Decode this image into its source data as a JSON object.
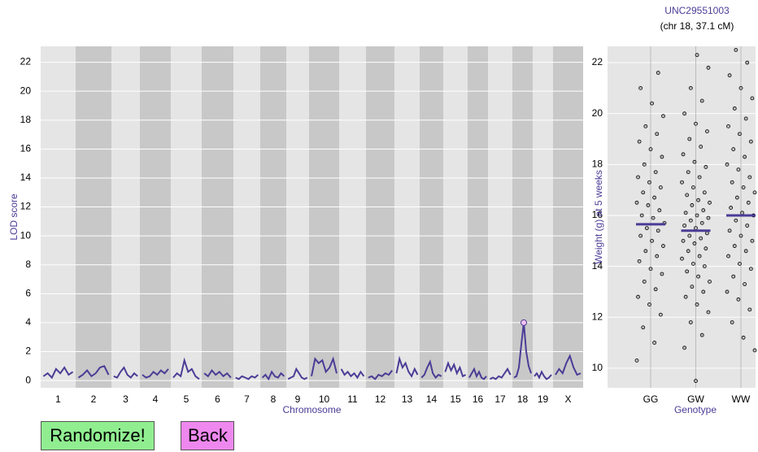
{
  "chart_data": [
    {
      "type": "genome-scan",
      "ylabel": "LOD score",
      "xlabel": "Chromosome",
      "color": "#4b3c96",
      "marker_color": "#f4c2f0",
      "marker_chromosome": "18",
      "ylim": [
        -0.5,
        23.1
      ],
      "yticks": [
        0,
        2,
        4,
        6,
        8,
        10,
        12,
        14,
        16,
        18,
        20,
        22
      ],
      "grid": true,
      "chromosomes": [
        {
          "name": "1",
          "length": 43,
          "lod": [
            0.3,
            0.5,
            0.2,
            0.8,
            0.5,
            0.9,
            0.4,
            0.6
          ]
        },
        {
          "name": "2",
          "length": 44,
          "lod": [
            0.2,
            0.4,
            0.7,
            0.3,
            0.5,
            0.9,
            1.0,
            0.4
          ]
        },
        {
          "name": "3",
          "length": 35,
          "lod": [
            0.3,
            0.2,
            0.6,
            0.9,
            0.4,
            0.2,
            0.5,
            0.3
          ]
        },
        {
          "name": "4",
          "length": 38,
          "lod": [
            0.4,
            0.2,
            0.3,
            0.6,
            0.4,
            0.7,
            0.5,
            0.8
          ]
        },
        {
          "name": "5",
          "length": 38,
          "lod": [
            0.2,
            0.5,
            0.3,
            1.4,
            0.6,
            0.8,
            0.3,
            0.1
          ]
        },
        {
          "name": "6",
          "length": 39,
          "lod": [
            0.5,
            0.3,
            0.7,
            0.4,
            0.6,
            0.3,
            0.5,
            0.2
          ]
        },
        {
          "name": "7",
          "length": 33,
          "lod": [
            0.2,
            0.1,
            0.3,
            0.2,
            0.1,
            0.3,
            0.2,
            0.4
          ]
        },
        {
          "name": "8",
          "length": 32,
          "lod": [
            0.2,
            0.4,
            0.1,
            0.6,
            0.3,
            0.2,
            0.5,
            0.3
          ]
        },
        {
          "name": "9",
          "length": 28,
          "lod": [
            0.1,
            0.2,
            0.3,
            0.8,
            0.5,
            0.2,
            0.1,
            0.2
          ]
        },
        {
          "name": "10",
          "length": 37,
          "lod": [
            0.3,
            1.5,
            1.2,
            1.4,
            0.6,
            0.9,
            1.5,
            0.5
          ]
        },
        {
          "name": "11",
          "length": 33,
          "lod": [
            0.8,
            0.4,
            0.6,
            0.3,
            0.5,
            0.2,
            0.6,
            0.3
          ]
        },
        {
          "name": "12",
          "length": 35,
          "lod": [
            0.2,
            0.3,
            0.1,
            0.4,
            0.3,
            0.5,
            0.4,
            0.7
          ]
        },
        {
          "name": "13",
          "length": 31,
          "lod": [
            0.5,
            1.5,
            0.9,
            1.2,
            0.6,
            0.3,
            0.8,
            0.4
          ]
        },
        {
          "name": "14",
          "length": 29,
          "lod": [
            0.2,
            0.4,
            0.9,
            1.3,
            0.5,
            0.2,
            0.4,
            0.3
          ]
        },
        {
          "name": "15",
          "length": 30,
          "lod": [
            0.6,
            1.2,
            0.7,
            1.1,
            0.5,
            0.9,
            0.3,
            0.4
          ]
        },
        {
          "name": "16",
          "length": 25,
          "lod": [
            0.2,
            0.5,
            0.8,
            0.3,
            0.6,
            0.2,
            0.1,
            0.3
          ]
        },
        {
          "name": "17",
          "length": 30,
          "lod": [
            0.1,
            0.2,
            0.1,
            0.3,
            0.2,
            0.5,
            0.8,
            0.4
          ]
        },
        {
          "name": "18",
          "length": 25,
          "lod": [
            0.2,
            0.3,
            0.9,
            2.5,
            4.0,
            2.0,
            1.0,
            0.5
          ]
        },
        {
          "name": "19",
          "length": 25,
          "lod": [
            0.3,
            0.5,
            0.2,
            0.6,
            0.3,
            0.1,
            0.2,
            0.4
          ]
        },
        {
          "name": "X",
          "length": 37,
          "lod": [
            0.4,
            0.8,
            0.5,
            1.2,
            1.7,
            0.9,
            0.4,
            0.5
          ]
        }
      ]
    },
    {
      "type": "strip",
      "title": "UNC29551003",
      "subtitle": "(chr 18, 37.1 cM)",
      "ylabel": "Weight (g) at 5 weeks",
      "xlabel": "Genotype",
      "ylim": [
        9.23,
        22.64
      ],
      "yticks": [
        10,
        12,
        14,
        16,
        18,
        20,
        22
      ],
      "mean_color": "#4b3c96",
      "categories": [
        "GG",
        "GW",
        "WW"
      ],
      "means": [
        15.65,
        15.4,
        16.0
      ],
      "values": [
        [
          10.3,
          11.0,
          11.6,
          12.1,
          12.5,
          12.8,
          13.1,
          13.4,
          13.7,
          13.9,
          14.2,
          14.4,
          14.6,
          14.8,
          15.0,
          15.2,
          15.4,
          15.5,
          15.7,
          15.9,
          16.0,
          16.2,
          16.4,
          16.5,
          16.7,
          16.9,
          17.1,
          17.3,
          17.5,
          17.7,
          18.0,
          18.3,
          18.6,
          18.9,
          19.2,
          19.5,
          19.9,
          20.4,
          21.0,
          21.6
        ],
        [
          9.5,
          10.8,
          11.3,
          11.8,
          12.2,
          12.5,
          12.8,
          13.0,
          13.2,
          13.4,
          13.6,
          13.8,
          14.0,
          14.1,
          14.3,
          14.4,
          14.6,
          14.7,
          14.9,
          15.0,
          15.1,
          15.2,
          15.3,
          15.5,
          15.6,
          15.7,
          15.8,
          15.9,
          16.0,
          16.1,
          16.2,
          16.4,
          16.5,
          16.6,
          16.8,
          16.9,
          17.1,
          17.3,
          17.5,
          17.7,
          17.9,
          18.1,
          18.4,
          18.7,
          19.0,
          19.3,
          19.6,
          20.0,
          20.5,
          21.0,
          21.8,
          22.3
        ],
        [
          10.7,
          11.2,
          11.8,
          12.3,
          12.7,
          13.0,
          13.3,
          13.6,
          13.9,
          14.1,
          14.4,
          14.6,
          14.8,
          15.0,
          15.2,
          15.4,
          15.6,
          15.8,
          16.0,
          16.1,
          16.3,
          16.5,
          16.7,
          16.9,
          17.1,
          17.3,
          17.5,
          17.8,
          18.0,
          18.3,
          18.6,
          18.9,
          19.2,
          19.5,
          19.8,
          20.2,
          20.6,
          21.0,
          21.5,
          22.0,
          22.5
        ]
      ]
    },
    {
      "type": "buttons",
      "labels": [
        "Randomize!",
        "Back"
      ],
      "colors": [
        "#90ee90",
        "#ee88ee"
      ]
    }
  ]
}
